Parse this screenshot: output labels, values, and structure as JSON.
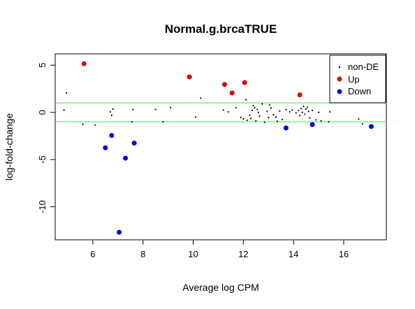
{
  "chart_data": {
    "type": "scatter",
    "title": "Normal.g.brcaTRUE",
    "xlabel": "Average log CPM",
    "ylabel": "log-fold-change",
    "xlim": [
      4.5,
      17.7
    ],
    "ylim": [
      -13.5,
      6.2
    ],
    "x_ticks": [
      6,
      8,
      10,
      12,
      14,
      16
    ],
    "y_ticks": [
      5,
      0,
      -5,
      -10
    ],
    "threshold_lines": [
      1,
      -1
    ],
    "threshold_color": "#66ee66",
    "legend_position": "top-right",
    "series": [
      {
        "name": "non-DE",
        "color": "#000000",
        "marker": "small-dot",
        "points": [
          [
            4.85,
            0.25
          ],
          [
            4.95,
            2.05
          ],
          [
            5.6,
            -1.25
          ],
          [
            6.1,
            -1.35
          ],
          [
            6.7,
            0.05
          ],
          [
            6.75,
            -0.3
          ],
          [
            6.8,
            0.35
          ],
          [
            7.55,
            -1.0
          ],
          [
            7.6,
            0.3
          ],
          [
            8.5,
            0.3
          ],
          [
            8.8,
            -1.0
          ],
          [
            9.1,
            0.5
          ],
          [
            10.1,
            -0.5
          ],
          [
            10.3,
            1.5
          ],
          [
            11.2,
            0.25
          ],
          [
            11.4,
            0.05
          ],
          [
            11.7,
            0.5
          ],
          [
            11.9,
            -0.55
          ],
          [
            12.0,
            -0.7
          ],
          [
            12.1,
            1.35
          ],
          [
            12.15,
            -0.85
          ],
          [
            12.25,
            -0.3
          ],
          [
            12.3,
            -0.65
          ],
          [
            12.35,
            0.2
          ],
          [
            12.4,
            0.7
          ],
          [
            12.45,
            0.5
          ],
          [
            12.5,
            -0.9
          ],
          [
            12.55,
            0.3
          ],
          [
            12.6,
            0.0
          ],
          [
            12.65,
            -0.4
          ],
          [
            12.75,
            0.9
          ],
          [
            12.85,
            -1.05
          ],
          [
            12.95,
            0.1
          ],
          [
            13.0,
            -0.55
          ],
          [
            13.05,
            0.8
          ],
          [
            13.1,
            0.45
          ],
          [
            13.2,
            -0.25
          ],
          [
            13.3,
            -0.5
          ],
          [
            13.35,
            -0.95
          ],
          [
            13.45,
            0.15
          ],
          [
            13.55,
            -0.75
          ],
          [
            13.7,
            0.3
          ],
          [
            13.85,
            0.05
          ],
          [
            13.95,
            0.25
          ],
          [
            14.1,
            -0.05
          ],
          [
            14.2,
            0.2
          ],
          [
            14.25,
            -0.35
          ],
          [
            14.3,
            0.4
          ],
          [
            14.35,
            0.0
          ],
          [
            14.4,
            0.65
          ],
          [
            14.45,
            -0.2
          ],
          [
            14.5,
            0.35
          ],
          [
            14.55,
            0.55
          ],
          [
            14.6,
            0.1
          ],
          [
            14.65,
            -0.6
          ],
          [
            14.75,
            0.2
          ],
          [
            14.9,
            -0.8
          ],
          [
            15.0,
            0.0
          ],
          [
            15.1,
            -0.9
          ],
          [
            15.4,
            -1.0
          ],
          [
            15.45,
            0.05
          ],
          [
            16.6,
            -0.7
          ],
          [
            16.75,
            -1.2
          ]
        ]
      },
      {
        "name": "Up",
        "color": "#dd0000",
        "marker": "filled-circle",
        "points": [
          [
            5.65,
            5.15
          ],
          [
            9.85,
            3.75
          ],
          [
            11.25,
            2.95
          ],
          [
            11.55,
            2.05
          ],
          [
            12.05,
            3.15
          ],
          [
            14.25,
            1.85
          ]
        ]
      },
      {
        "name": "Down",
        "color": "#0000dd",
        "marker": "filled-circle",
        "points": [
          [
            6.5,
            -3.75
          ],
          [
            6.75,
            -2.45
          ],
          [
            7.05,
            -12.7
          ],
          [
            7.3,
            -4.85
          ],
          [
            7.65,
            -3.25
          ],
          [
            13.7,
            -1.65
          ],
          [
            14.75,
            -1.3
          ],
          [
            17.1,
            -1.5
          ]
        ]
      }
    ]
  }
}
